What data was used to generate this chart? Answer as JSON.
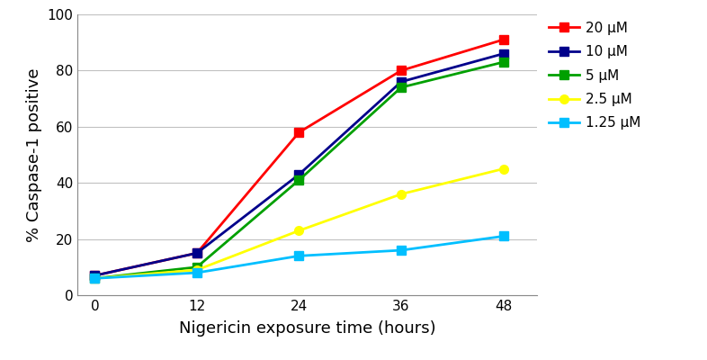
{
  "x": [
    0,
    12,
    24,
    36,
    48
  ],
  "series": [
    {
      "label": "20 μM",
      "color": "#FF0000",
      "values": [
        7,
        15,
        58,
        80,
        91
      ],
      "marker": "s"
    },
    {
      "label": "10 μM",
      "color": "#00008B",
      "values": [
        7,
        15,
        43,
        76,
        86
      ],
      "marker": "s"
    },
    {
      "label": "5 μM",
      "color": "#00A000",
      "values": [
        6,
        10,
        41,
        74,
        83
      ],
      "marker": "s"
    },
    {
      "label": "2.5 μM",
      "color": "#FFFF00",
      "values": [
        6,
        9,
        23,
        36,
        45
      ],
      "marker": "o"
    },
    {
      "label": "1.25 μM",
      "color": "#00BFFF",
      "values": [
        6,
        8,
        14,
        16,
        21
      ],
      "marker": "s"
    }
  ],
  "xlabel": "Nigericin exposure time (hours)",
  "ylabel": "% Caspase-1 positive",
  "xlim": [
    -2,
    52
  ],
  "ylim": [
    0,
    100
  ],
  "xticks": [
    0,
    12,
    24,
    36,
    48
  ],
  "yticks": [
    0,
    20,
    40,
    60,
    80,
    100
  ],
  "grid_color": "#C0C0C0",
  "background_color": "#FFFFFF",
  "marker_size": 7,
  "linewidth": 2.0,
  "legend_fontsize": 11,
  "axis_label_fontsize": 13,
  "tick_fontsize": 11
}
